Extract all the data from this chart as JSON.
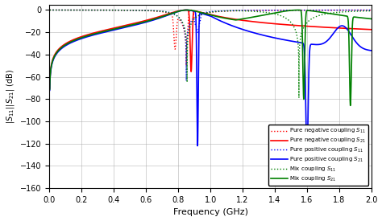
{
  "title": "",
  "xlabel": "Frequency (GHz)",
  "ylabel": "|S_{11}||S_{21}| (dB)",
  "xlim": [
    0.0,
    2.0
  ],
  "ylim": [
    -160,
    5
  ],
  "yticks": [
    0,
    -20,
    -40,
    -60,
    -80,
    -100,
    -120,
    -140,
    -160
  ],
  "xticks": [
    0.0,
    0.2,
    0.4,
    0.6,
    0.8,
    1.0,
    1.2,
    1.4,
    1.6,
    1.8,
    2.0
  ],
  "legend": [
    {
      "label": "Pure negative coupling $S_{11}$",
      "color": "red",
      "linestyle": "dotted",
      "linewidth": 1.0
    },
    {
      "label": "Pure negative coupling $S_{21}$",
      "color": "red",
      "linestyle": "solid",
      "linewidth": 1.2
    },
    {
      "label": "Pure positive coupling $S_{11}$",
      "color": "blue",
      "linestyle": "dotted",
      "linewidth": 1.0
    },
    {
      "label": "Pure positive coupling $S_{21}$",
      "color": "blue",
      "linestyle": "solid",
      "linewidth": 1.2
    },
    {
      "label": "Mix coupling $S_{11}$",
      "color": "green",
      "linestyle": "dotted",
      "linewidth": 1.0
    },
    {
      "label": "Mix coupling $S_{21}$",
      "color": "green",
      "linestyle": "solid",
      "linewidth": 1.2
    }
  ],
  "background_color": "#ffffff",
  "grid_color": "#aaaaaa"
}
